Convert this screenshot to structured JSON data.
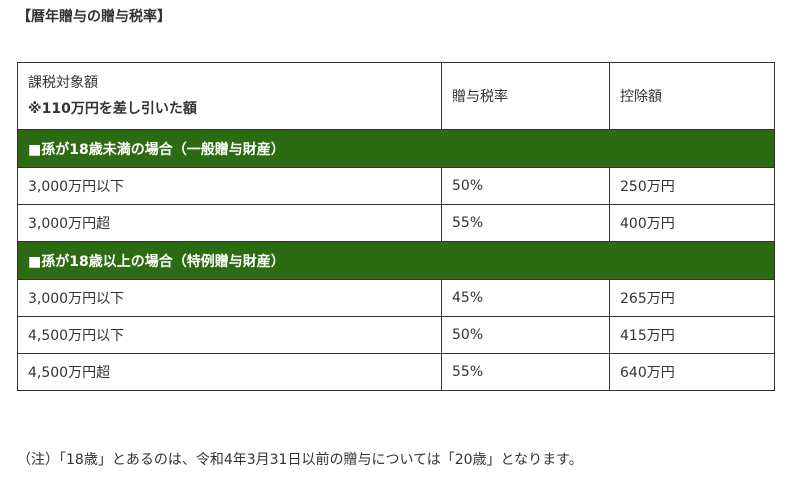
{
  "heading": "【暦年贈与の贈与税率】",
  "table": {
    "header": {
      "col1_line1": "課税対象額",
      "col1_line2": "※110万円を差し引いた額",
      "col2": "贈与税率",
      "col3": "控除額"
    },
    "sections": [
      {
        "title": "■孫が18歳未満の場合（一般贈与財産）",
        "rows": [
          {
            "amount": "3,000万円以下",
            "rate": "50%",
            "deduction": "250万円"
          },
          {
            "amount": "3,000万円超",
            "rate": "55%",
            "deduction": "400万円"
          }
        ]
      },
      {
        "title": "■孫が18歳以上の場合（特例贈与財産）",
        "rows": [
          {
            "amount": "3,000万円以下",
            "rate": "45%",
            "deduction": "265万円"
          },
          {
            "amount": "4,500万円以下",
            "rate": "50%",
            "deduction": "415万円"
          },
          {
            "amount": "4,500万円超",
            "rate": "55%",
            "deduction": "640万円"
          }
        ]
      }
    ]
  },
  "note": "（注）「18歳」とあるのは、令和4年3月31日以前の贈与については「20歳」となります。",
  "colors": {
    "section_bg": "#2d6b12",
    "text": "#333333",
    "border": "#333333"
  }
}
